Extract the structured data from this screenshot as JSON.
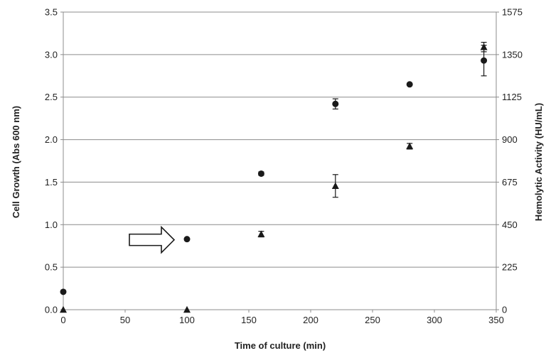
{
  "chart_data": {
    "type": "scatter",
    "title": "",
    "xlabel": "Time of culture (min)",
    "ylabel": "Cell Growth (Abs 600 nm)",
    "y2label": "Hemolytic Activity (HU/mL)",
    "xlim": [
      0,
      350
    ],
    "ylim": [
      0,
      3.5
    ],
    "y2lim": [
      0,
      1575
    ],
    "xticks": [
      "0",
      "50",
      "100",
      "150",
      "200",
      "250",
      "300",
      "350"
    ],
    "yticks": [
      "0.0",
      "0.5",
      "1.0",
      "1.5",
      "2.0",
      "2.5",
      "3.0",
      "3.5"
    ],
    "y2ticks": [
      "0",
      "225",
      "450",
      "675",
      "900",
      "1125",
      "1350",
      "1575"
    ],
    "grid": "horizontal",
    "legend": "none",
    "series": [
      {
        "marker": "circle",
        "axis": "left",
        "x": [
          0,
          100,
          160,
          220,
          280,
          340
        ],
        "y": [
          0.21,
          0.83,
          1.6,
          2.42,
          2.65,
          2.93
        ],
        "err": [
          0,
          0,
          0.02,
          0.06,
          0,
          0.18
        ]
      },
      {
        "marker": "triangle",
        "axis": "right",
        "x": [
          0,
          100,
          160,
          220,
          280,
          340
        ],
        "y": [
          0,
          0,
          400,
          655,
          865,
          1390
        ],
        "err": [
          0,
          0,
          15,
          60,
          15,
          25
        ]
      }
    ],
    "annotations": [
      {
        "type": "arrow",
        "direction": "right",
        "points_to": [
          100,
          0.83
        ]
      }
    ],
    "colors": {
      "markers": "#1a1a1a",
      "grid": "#8c8c8c",
      "axis": "#8c8c8c"
    }
  }
}
